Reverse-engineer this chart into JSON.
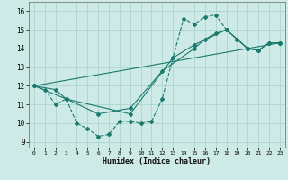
{
  "xlabel": "Humidex (Indice chaleur)",
  "bg_color": "#ceeae6",
  "grid_color": "#aed4d0",
  "line_color": "#1a7a6e",
  "xlim": [
    -0.5,
    23.5
  ],
  "ylim": [
    8.7,
    16.5
  ],
  "xticks": [
    0,
    1,
    2,
    3,
    4,
    5,
    6,
    7,
    8,
    9,
    10,
    11,
    12,
    13,
    14,
    15,
    16,
    17,
    18,
    19,
    20,
    21,
    22,
    23
  ],
  "yticks": [
    9,
    10,
    11,
    12,
    13,
    14,
    15,
    16
  ],
  "line1_x": [
    0,
    1,
    2,
    3,
    4,
    5,
    6,
    7,
    8,
    9,
    10,
    11,
    12,
    13,
    14,
    15,
    16,
    17,
    18,
    19,
    20,
    21,
    22,
    23
  ],
  "line1_y": [
    12.0,
    11.8,
    11.0,
    11.3,
    10.0,
    9.7,
    9.3,
    9.4,
    10.1,
    10.1,
    10.0,
    10.1,
    11.3,
    13.5,
    15.6,
    15.3,
    15.7,
    15.8,
    15.0,
    14.5,
    14.0,
    13.9,
    14.3,
    14.3
  ],
  "line2_x": [
    0,
    2,
    3,
    6,
    9,
    12,
    15,
    16,
    17,
    18,
    19,
    20,
    21,
    22,
    23
  ],
  "line2_y": [
    12.0,
    11.8,
    11.3,
    10.5,
    10.8,
    12.8,
    14.0,
    14.5,
    14.8,
    15.0,
    14.5,
    14.0,
    13.9,
    14.3,
    14.3
  ],
  "line3_x": [
    0,
    3,
    9,
    13,
    15,
    18,
    20,
    21,
    22,
    23
  ],
  "line3_y": [
    12.0,
    11.3,
    10.5,
    13.5,
    14.2,
    15.0,
    14.0,
    13.9,
    14.3,
    14.3
  ],
  "line4_x": [
    0,
    23
  ],
  "line4_y": [
    12.0,
    14.3
  ]
}
